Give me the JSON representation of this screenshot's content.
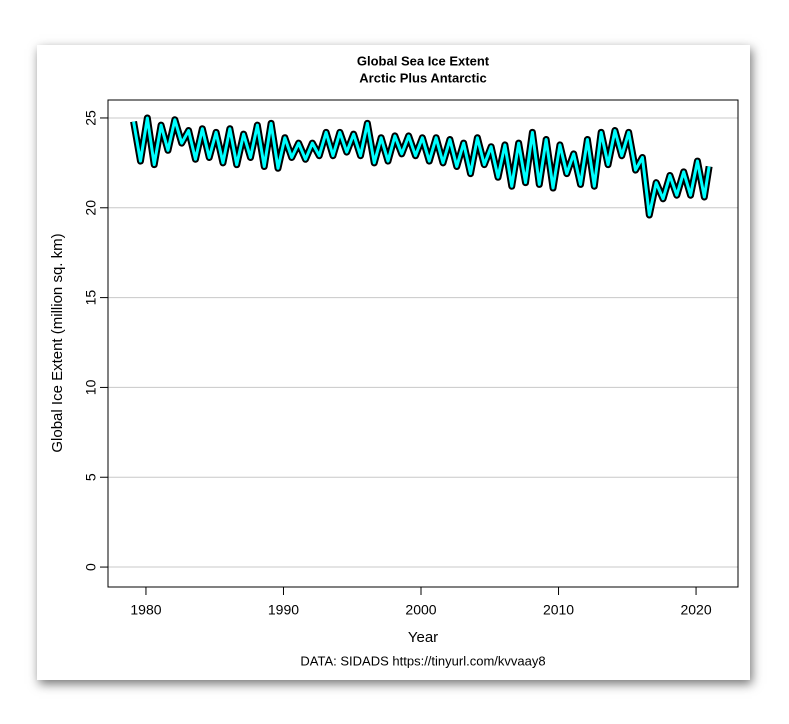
{
  "chart_data": {
    "type": "line",
    "title": "Global Sea Ice Extent",
    "subtitle": "Arctic Plus Antarctic",
    "xlabel": "Year",
    "ylabel": "Global Ice Extent (million sq. km)",
    "caption": "DATA: SIDADS https://tinyurl.com/kvvaay8",
    "x": [
      1979.1,
      1979.6,
      1980.1,
      1980.6,
      1981.1,
      1981.6,
      1982.1,
      1982.6,
      1983.1,
      1983.6,
      1984.1,
      1984.6,
      1985.1,
      1985.6,
      1986.1,
      1986.6,
      1987.1,
      1987.6,
      1988.1,
      1988.6,
      1989.1,
      1989.6,
      1990.1,
      1990.6,
      1991.1,
      1991.6,
      1992.1,
      1992.6,
      1993.1,
      1993.6,
      1994.1,
      1994.6,
      1995.1,
      1995.6,
      1996.1,
      1996.6,
      1997.1,
      1997.6,
      1998.1,
      1998.6,
      1999.1,
      1999.6,
      2000.1,
      2000.6,
      2001.1,
      2001.6,
      2002.1,
      2002.6,
      2003.1,
      2003.6,
      2004.1,
      2004.6,
      2005.1,
      2005.6,
      2006.1,
      2006.6,
      2007.1,
      2007.6,
      2008.1,
      2008.6,
      2009.1,
      2009.6,
      2010.1,
      2010.6,
      2011.1,
      2011.6,
      2012.1,
      2012.6,
      2013.1,
      2013.6,
      2014.1,
      2014.6,
      2015.1,
      2015.6,
      2016.1,
      2016.6,
      2017.1,
      2017.6,
      2018.1,
      2018.6,
      2019.1,
      2019.6,
      2020.1,
      2020.6,
      2020.95
    ],
    "series": [
      {
        "color": "#00ffff",
        "values": [
          24.8,
          22.6,
          25.0,
          22.4,
          24.6,
          23.2,
          24.9,
          23.6,
          24.3,
          22.7,
          24.4,
          22.8,
          24.2,
          22.5,
          24.4,
          22.4,
          24.1,
          22.8,
          24.6,
          22.3,
          24.7,
          22.2,
          23.9,
          22.8,
          23.6,
          22.7,
          23.6,
          22.9,
          24.2,
          22.9,
          24.2,
          23.1,
          24.1,
          22.9,
          24.7,
          22.5,
          23.9,
          22.6,
          24.0,
          23.0,
          24.0,
          22.9,
          23.9,
          22.6,
          23.9,
          22.5,
          23.8,
          22.3,
          23.6,
          21.9,
          23.9,
          22.4,
          23.4,
          21.7,
          23.5,
          21.2,
          23.6,
          21.4,
          24.2,
          21.3,
          23.8,
          21.1,
          23.5,
          21.9,
          23.0,
          21.3,
          23.8,
          21.2,
          24.2,
          22.4,
          24.3,
          22.9,
          24.2,
          22.1,
          22.8,
          19.6,
          21.4,
          20.5,
          21.8,
          20.7,
          22.0,
          20.7,
          22.6,
          20.6,
          22.3
        ]
      }
    ],
    "xlim": [
      1977.24,
      2023.05
    ],
    "ylim": [
      -1.11,
      26.0
    ],
    "xticks": [
      1980,
      1990,
      2000,
      2010,
      2020
    ],
    "yticks": [
      0,
      5,
      10,
      15,
      20,
      25
    ],
    "grid": true
  }
}
